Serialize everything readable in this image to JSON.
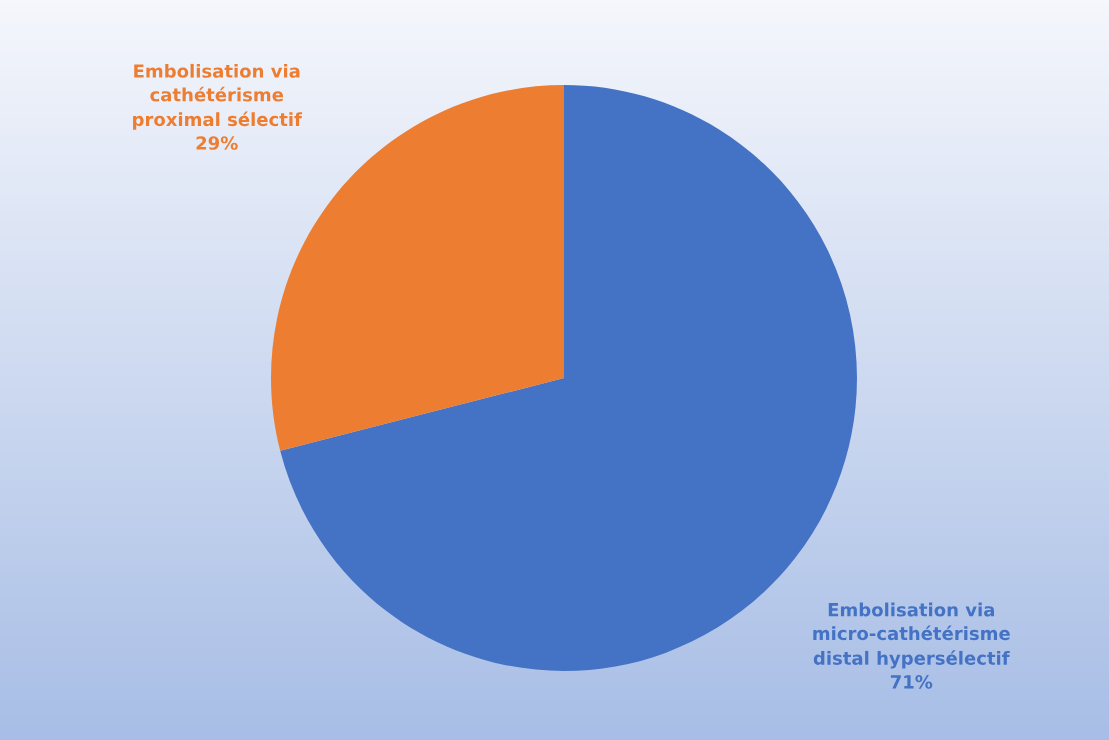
{
  "chart_data": {
    "type": "pie",
    "categories": [
      "Embolisation via\nmicro-cathétérisme\ndistal hypersélectif",
      "Embolisation via\ncathétérisme\nproximal sélectif"
    ],
    "values": [
      71,
      29
    ],
    "value_labels": [
      "71%",
      "29%"
    ],
    "colors": [
      "#4472c4",
      "#ed7d31"
    ],
    "legend": false
  }
}
